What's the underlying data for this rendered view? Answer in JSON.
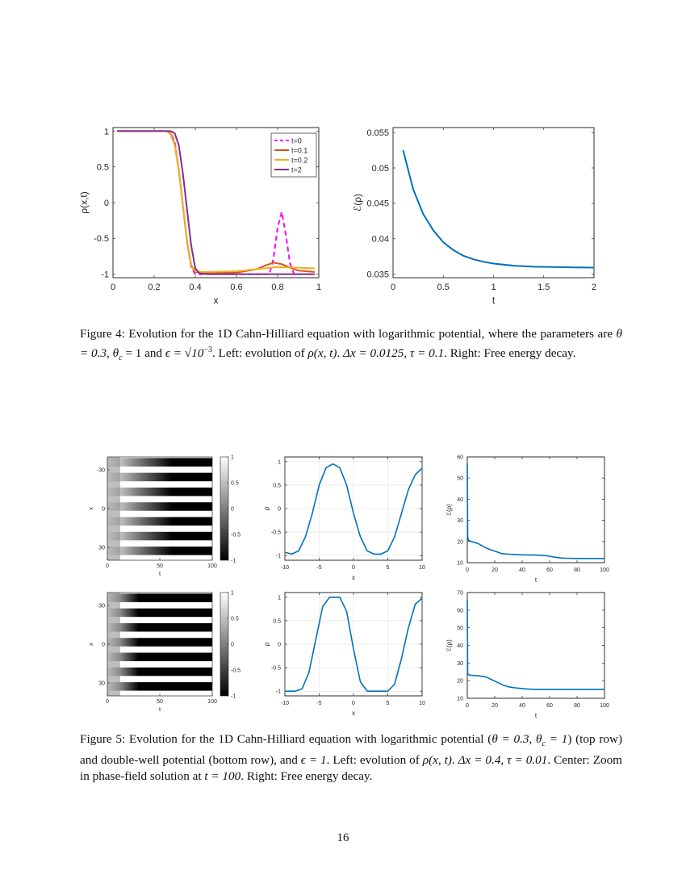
{
  "figure4": {
    "left": {
      "type": "line",
      "xlabel": "x",
      "ylabel": "ρ(x,t)",
      "xlim": [
        0,
        1
      ],
      "ylim": [
        -1.05,
        1.05
      ],
      "x_ticks": [
        "0",
        "0.2",
        "0.4",
        "0.6",
        "0.8",
        "1"
      ],
      "y_ticks": [
        "1",
        "0.5",
        "0",
        "-0.5",
        "-1"
      ],
      "legend": [
        "t=0",
        "t=0.1",
        "t=0.2",
        "t=2"
      ],
      "series": [
        {
          "name": "t=0",
          "color": "#ff00ff",
          "dashed": true,
          "x": [
            0.02,
            0.26,
            0.28,
            0.3,
            0.32,
            0.34,
            0.36,
            0.38,
            0.4,
            0.44,
            0.76,
            0.78,
            0.8,
            0.82,
            0.84,
            0.86,
            0.88,
            0.98
          ],
          "y": [
            1,
            1,
            0.98,
            0.85,
            0.45,
            -0.05,
            -0.55,
            -0.9,
            -1,
            -1,
            -1,
            -0.78,
            -0.35,
            -0.13,
            -0.45,
            -0.85,
            -1,
            -1
          ]
        },
        {
          "name": "t=0.1",
          "color": "#d95319",
          "dashed": false,
          "x": [
            0.02,
            0.26,
            0.28,
            0.3,
            0.32,
            0.34,
            0.36,
            0.38,
            0.4,
            0.44,
            0.6,
            0.7,
            0.74,
            0.78,
            0.82,
            0.86,
            0.9,
            0.98
          ],
          "y": [
            1,
            1,
            0.97,
            0.82,
            0.45,
            -0.05,
            -0.55,
            -0.88,
            -0.97,
            -0.98,
            -0.98,
            -0.93,
            -0.88,
            -0.84,
            -0.86,
            -0.91,
            -0.95,
            -0.97
          ]
        },
        {
          "name": "t=0.2",
          "color": "#edb120",
          "dashed": false,
          "x": [
            0.02,
            0.26,
            0.28,
            0.3,
            0.32,
            0.34,
            0.36,
            0.38,
            0.4,
            0.44,
            0.6,
            0.7,
            0.8,
            0.9,
            0.98
          ],
          "y": [
            1,
            1,
            0.96,
            0.8,
            0.45,
            -0.05,
            -0.55,
            -0.87,
            -0.96,
            -0.97,
            -0.96,
            -0.93,
            -0.9,
            -0.91,
            -0.92
          ]
        },
        {
          "name": "t=2",
          "color": "#7e2f8e",
          "dashed": false,
          "x": [
            0.02,
            0.28,
            0.3,
            0.32,
            0.34,
            0.36,
            0.38,
            0.4,
            0.42,
            0.46,
            0.98
          ],
          "y": [
            1,
            1,
            0.97,
            0.8,
            0.4,
            -0.1,
            -0.6,
            -0.92,
            -0.99,
            -1,
            -1
          ]
        }
      ]
    },
    "right": {
      "type": "line",
      "xlabel": "t",
      "ylabel": "ℰ(ρ)",
      "xlim": [
        0,
        2
      ],
      "ylim": [
        0.0345,
        0.0557
      ],
      "x_ticks": [
        "0",
        "0.5",
        "1",
        "1.5",
        "2"
      ],
      "y_ticks": [
        "0.055",
        "0.05",
        "0.045",
        "0.04",
        "0.035"
      ],
      "series": [
        {
          "name": "energy",
          "color": "#0072bd",
          "x": [
            0.1,
            0.2,
            0.3,
            0.4,
            0.5,
            0.6,
            0.7,
            0.8,
            0.9,
            1.0,
            1.2,
            1.4,
            1.6,
            1.8,
            2.0
          ],
          "y": [
            0.0525,
            0.047,
            0.0435,
            0.0412,
            0.0395,
            0.0384,
            0.0376,
            0.0371,
            0.03675,
            0.0365,
            0.0362,
            0.03605,
            0.036,
            0.03595,
            0.03593
          ]
        }
      ]
    },
    "caption": {
      "label": "Figure 4:",
      "parts": [
        "Evolution for the 1D Cahn-Hilliard equation with logarithmic potential, where the parameters are ",
        "θ = 0.3, θ",
        "c",
        " = 1 and ",
        "ϵ = √10",
        "−3",
        ". Left: evolution of ",
        "ρ(x, t)",
        ". ",
        "Δx = 0.0125, τ = 0.1",
        ". Right: Free energy decay."
      ]
    }
  },
  "figure5": {
    "rows": [
      {
        "heatmap": {
          "xlabel": "t",
          "ylabel": "x",
          "x_ticks": [
            "0",
            "50",
            "100"
          ],
          "y_ticks": [
            "-30",
            "0",
            "30"
          ],
          "colorbar_ticks": [
            "1",
            "0.5",
            "0",
            "-0.5",
            "-1"
          ],
          "stripes": 14
        },
        "zoom": {
          "type": "line",
          "xlabel": "x",
          "ylabel": "ρ",
          "xlim": [
            -10,
            10
          ],
          "ylim": [
            -1.1,
            1.1
          ],
          "x_ticks": [
            "-10",
            "-5",
            "0",
            "5",
            "10"
          ],
          "y_ticks": [
            "1",
            "0.5",
            "0",
            "-0.5",
            "-1"
          ],
          "x": [
            -10,
            -9,
            -8,
            -7,
            -6,
            -5,
            -4,
            -3,
            -2,
            -1,
            0,
            1,
            2,
            3,
            4,
            5,
            6,
            7,
            8,
            9,
            10
          ],
          "y": [
            -0.93,
            -0.97,
            -0.9,
            -0.6,
            -0.1,
            0.5,
            0.87,
            0.95,
            0.87,
            0.5,
            -0.1,
            -0.6,
            -0.9,
            -0.97,
            -0.97,
            -0.9,
            -0.6,
            -0.1,
            0.4,
            0.72,
            0.86
          ]
        },
        "energy": {
          "type": "line",
          "xlabel": "t",
          "ylabel": "ℰ(ρ)",
          "xlim": [
            0,
            100
          ],
          "ylim": [
            10,
            60
          ],
          "x_ticks": [
            "0",
            "20",
            "40",
            "60",
            "80",
            "100"
          ],
          "y_ticks": [
            "60",
            "50",
            "40",
            "30",
            "20",
            "10"
          ],
          "x": [
            0,
            0.3,
            1,
            3,
            8,
            12,
            16,
            20,
            25,
            30,
            40,
            50,
            58,
            62,
            68,
            72,
            80,
            100
          ],
          "y": [
            57,
            22,
            20.5,
            20,
            19,
            17.5,
            16.3,
            15.5,
            14.3,
            14,
            13.7,
            13.6,
            13.3,
            12.8,
            12.2,
            12.1,
            12,
            12
          ]
        }
      },
      {
        "heatmap": {
          "xlabel": "t",
          "ylabel": "x",
          "x_ticks": [
            "0",
            "50",
            "100"
          ],
          "y_ticks": [
            "-30",
            "0",
            "30"
          ],
          "colorbar_ticks": [
            "1",
            "0.5",
            "0",
            "-0.5",
            "-1"
          ],
          "stripes": 14
        },
        "zoom": {
          "type": "line",
          "xlabel": "x",
          "ylabel": "ρ",
          "xlim": [
            -10,
            10
          ],
          "ylim": [
            -1.1,
            1.1
          ],
          "x_ticks": [
            "-10",
            "-5",
            "0",
            "5",
            "10"
          ],
          "y_ticks": [
            "1",
            "0.5",
            "0",
            "-0.5",
            "-1"
          ],
          "x": [
            -10,
            -8.5,
            -7.5,
            -6.5,
            -5.5,
            -4.5,
            -3.5,
            -2,
            -1,
            0,
            1,
            2,
            2.5,
            5,
            6,
            7,
            8,
            9,
            10
          ],
          "y": [
            -1,
            -1,
            -0.95,
            -0.6,
            0.1,
            0.8,
            1,
            1,
            0.7,
            -0.1,
            -0.8,
            -1,
            -1,
            -1,
            -0.85,
            -0.3,
            0.35,
            0.85,
            0.98
          ]
        },
        "energy": {
          "type": "line",
          "xlabel": "t",
          "ylabel": "ℰ(ρ)",
          "xlim": [
            0,
            100
          ],
          "ylim": [
            10,
            70
          ],
          "x_ticks": [
            "0",
            "20",
            "40",
            "60",
            "80",
            "100"
          ],
          "y_ticks": [
            "70",
            "60",
            "50",
            "40",
            "30",
            "20",
            "10"
          ],
          "x": [
            0,
            0.3,
            1,
            3,
            8,
            14,
            18,
            22,
            26,
            30,
            36,
            44,
            50,
            60,
            80,
            100
          ],
          "y": [
            66,
            24,
            23.3,
            23,
            22.8,
            22,
            20.5,
            19,
            17.5,
            16.5,
            15.8,
            15.2,
            15,
            15,
            15,
            15
          ]
        }
      }
    ],
    "caption": {
      "label": "Figure 5:",
      "parts": [
        "Evolution for the 1D Cahn-Hilliard equation with logarithmic potential (",
        "θ = 0.3, θ",
        "c",
        " = 1",
        ") (top row) and double-well potential (bottom row), and ",
        "ϵ = 1",
        ". Left: evolution of ",
        "ρ(x, t)",
        ". ",
        "Δx = 0.4, τ = 0.01",
        ". Center: Zoom in phase-field solution at ",
        "t = 100",
        ". Right: Free energy decay."
      ]
    }
  },
  "page_number": "16"
}
